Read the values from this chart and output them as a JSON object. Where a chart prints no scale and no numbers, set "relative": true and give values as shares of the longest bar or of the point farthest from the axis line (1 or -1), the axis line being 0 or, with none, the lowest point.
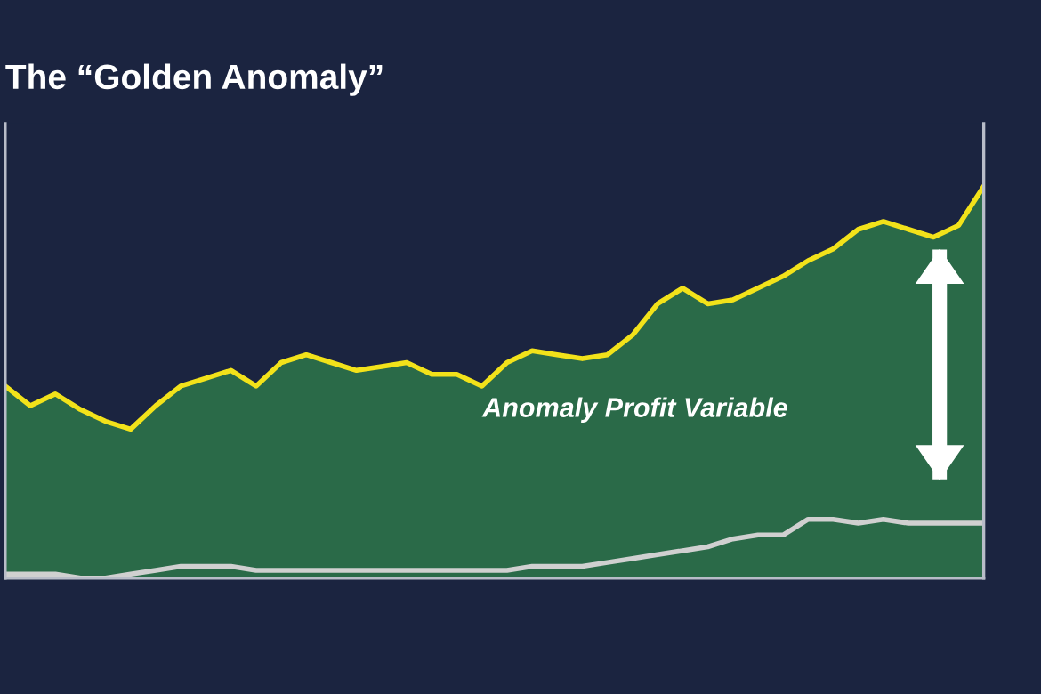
{
  "chart_data": {
    "type": "line",
    "title": "The “Golden Anomaly”",
    "relative": true,
    "grid": false,
    "legend": false,
    "categories": [
      null,
      null,
      null,
      null,
      null,
      null,
      null,
      null,
      null,
      null,
      null,
      null,
      null,
      null,
      null,
      null,
      null,
      null,
      null,
      null,
      null,
      null,
      null,
      null,
      null,
      null,
      null,
      null,
      null,
      null,
      null,
      null,
      null,
      null,
      null,
      null,
      null,
      null,
      null,
      null
    ],
    "series": [
      {
        "type": "area",
        "color": "#2a6a48",
        "values": [
          0.49,
          0.44,
          0.47,
          0.43,
          0.4,
          0.38,
          0.44,
          0.49,
          0.51,
          0.53,
          0.49,
          0.55,
          0.57,
          0.55,
          0.53,
          0.54,
          0.55,
          0.52,
          0.52,
          0.49,
          0.55,
          0.58,
          0.57,
          0.56,
          0.57,
          0.62,
          0.7,
          0.74,
          0.7,
          0.71,
          0.74,
          0.77,
          0.81,
          0.84,
          0.89,
          0.91,
          0.89,
          0.87,
          0.9,
          1
        ]
      },
      {
        "color": "#f2e21a",
        "values": [
          0.49,
          0.44,
          0.47,
          0.43,
          0.4,
          0.38,
          0.44,
          0.49,
          0.51,
          0.53,
          0.49,
          0.55,
          0.57,
          0.55,
          0.53,
          0.54,
          0.55,
          0.52,
          0.52,
          0.49,
          0.55,
          0.58,
          0.57,
          0.56,
          0.57,
          0.62,
          0.7,
          0.74,
          0.7,
          0.71,
          0.74,
          0.77,
          0.81,
          0.84,
          0.89,
          0.91,
          0.89,
          0.87,
          0.9,
          1
        ]
      },
      {
        "color": "#d0d0d0",
        "values": [
          0.01,
          0.01,
          0.01,
          0.0,
          0.0,
          0.01,
          0.02,
          0.03,
          0.03,
          0.03,
          0.02,
          0.02,
          0.02,
          0.02,
          0.02,
          0.02,
          0.02,
          0.02,
          0.02,
          0.02,
          0.02,
          0.03,
          0.03,
          0.03,
          0.04,
          0.05,
          0.06,
          0.07,
          0.08,
          0.1,
          0.11,
          0.11,
          0.15,
          0.15,
          0.14,
          0.15,
          0.14,
          0.14,
          0.14,
          0.14
        ]
      }
    ],
    "annotations": [
      "Anomaly Profit Variable"
    ]
  }
}
